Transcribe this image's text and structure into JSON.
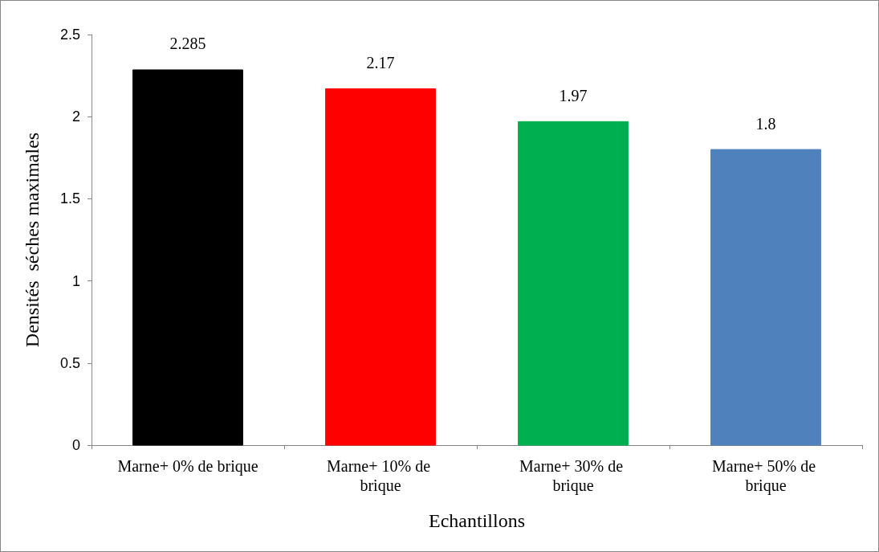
{
  "chart_data": {
    "type": "bar",
    "xlabel": "Echantillons",
    "ylabel": "Densités  séches maximales",
    "categories": [
      "Marne+ 0% de brique",
      "Marne+ 10% de brique",
      "Marne+ 30% de brique",
      "Marne+ 50% de brique"
    ],
    "values": [
      2.285,
      2.17,
      1.97,
      1.8
    ],
    "colors": [
      "#000000",
      "#ff0000",
      "#00b050",
      "#4f81bd"
    ],
    "ylim": [
      0,
      2.5
    ],
    "yticks": [
      0,
      0.5,
      1,
      1.5,
      2,
      2.5
    ],
    "grid": false,
    "data_labels": true
  }
}
